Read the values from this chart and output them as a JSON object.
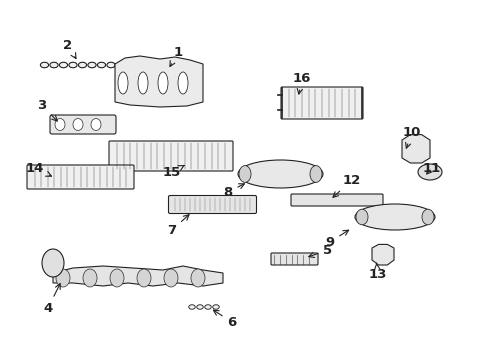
{
  "bg_color": "#ffffff",
  "line_color": "#222222",
  "fig_width": 4.89,
  "fig_height": 3.6,
  "dpi": 100,
  "labels_pos": {
    "1": [
      1.78,
      3.08,
      1.68,
      2.9
    ],
    "2": [
      0.68,
      3.15,
      0.78,
      2.98
    ],
    "3": [
      0.42,
      2.55,
      0.6,
      2.36
    ],
    "4": [
      0.48,
      0.52,
      0.62,
      0.8
    ],
    "5": [
      3.28,
      1.1,
      3.05,
      1.02
    ],
    "6": [
      2.32,
      0.38,
      2.1,
      0.52
    ],
    "7": [
      1.72,
      1.3,
      1.92,
      1.48
    ],
    "8": [
      2.28,
      1.68,
      2.48,
      1.78
    ],
    "9": [
      3.3,
      1.18,
      3.52,
      1.32
    ],
    "10": [
      4.12,
      2.28,
      4.05,
      2.08
    ],
    "11": [
      4.32,
      1.92,
      4.24,
      1.83
    ],
    "12": [
      3.52,
      1.8,
      3.3,
      1.6
    ],
    "13": [
      3.78,
      0.85,
      3.76,
      1.0
    ],
    "14": [
      0.35,
      1.92,
      0.55,
      1.82
    ],
    "15": [
      1.72,
      1.88,
      1.85,
      1.95
    ],
    "16": [
      3.02,
      2.82,
      2.98,
      2.62
    ]
  }
}
